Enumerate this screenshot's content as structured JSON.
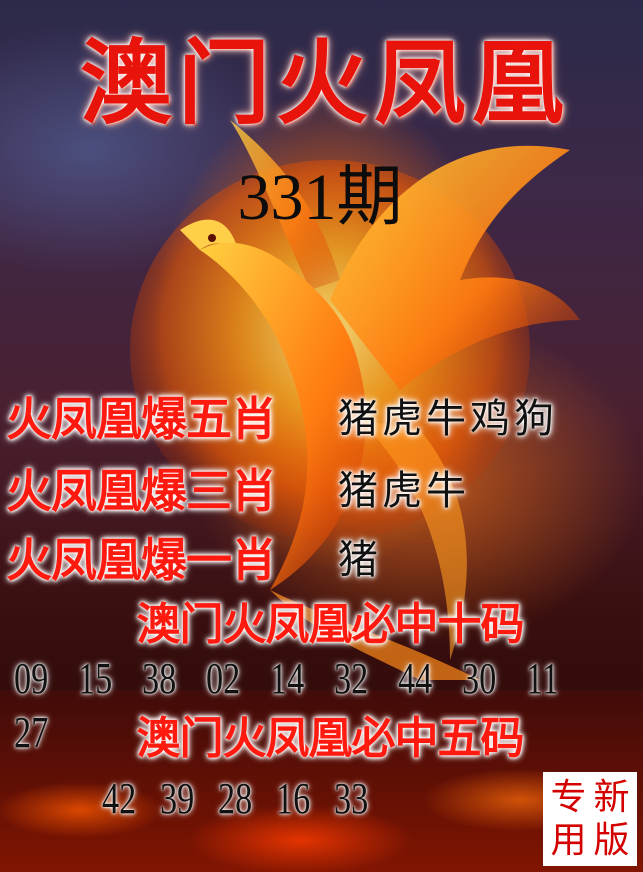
{
  "title": "澳门火凤凰",
  "issue": "331期",
  "predictions": [
    {
      "label": "火凤凰爆五肖",
      "value": "猪虎牛鸡狗"
    },
    {
      "label": "火凤凰爆三肖",
      "value": "猪虎牛"
    },
    {
      "label": "火凤凰爆一肖",
      "value": "猪"
    }
  ],
  "ten_codes": {
    "heading": "澳门火凤凰必中十码",
    "numbers": [
      "09",
      "15",
      "38",
      "02",
      "14",
      "32",
      "44",
      "30",
      "11",
      "27"
    ]
  },
  "five_codes": {
    "heading": "澳门火凤凰必中五码",
    "numbers": [
      "42",
      "39",
      "28",
      "16",
      "33"
    ]
  },
  "stamp": {
    "chars": [
      "新",
      "专",
      "版",
      "用"
    ]
  },
  "colors": {
    "headline_red": "#e8140c",
    "label_red": "#ff1a10",
    "stamp_red": "#d40000"
  }
}
